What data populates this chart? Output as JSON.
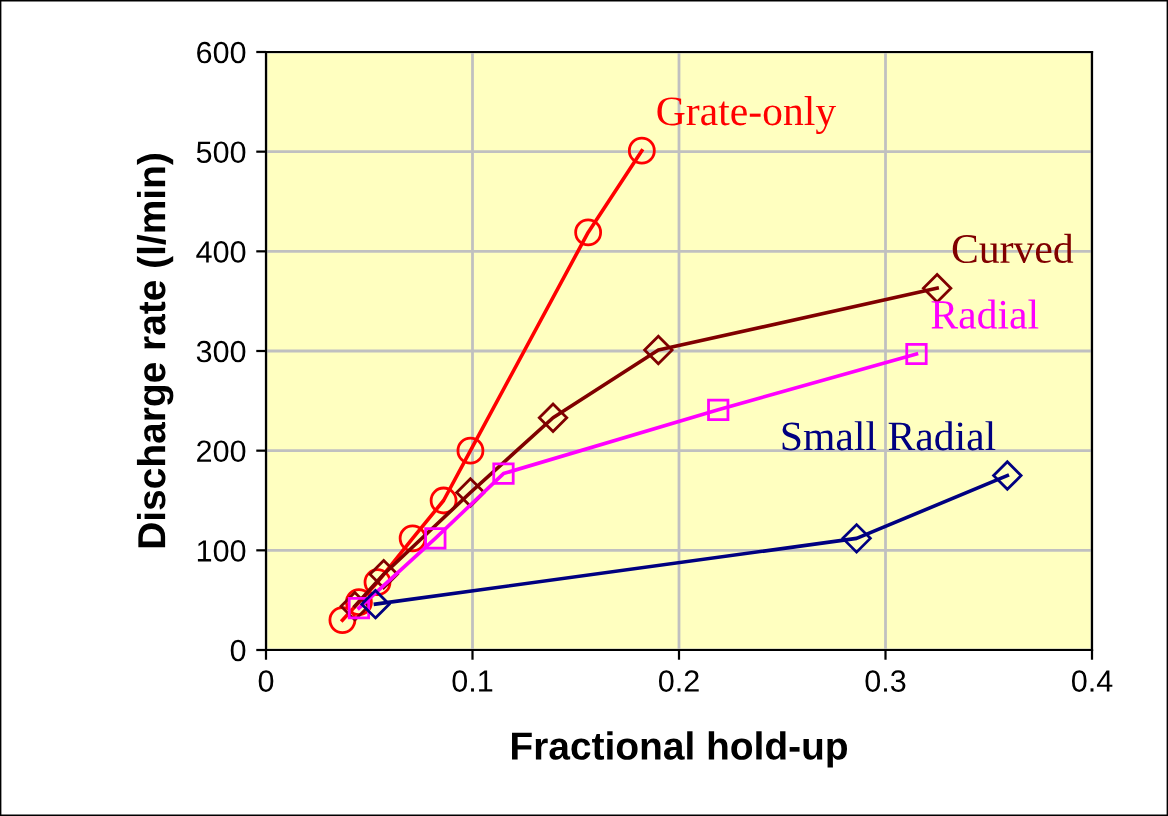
{
  "chart_data": {
    "type": "line",
    "xlabel": "Fractional hold-up",
    "ylabel": "Discharge rate (l/min)",
    "xlim": [
      0,
      0.4
    ],
    "ylim": [
      0,
      600
    ],
    "xticks": [
      0,
      0.1,
      0.2,
      0.3,
      0.4
    ],
    "yticks": [
      0,
      100,
      200,
      300,
      400,
      500,
      600
    ],
    "grid": true,
    "legend": false,
    "series": [
      {
        "name": "Grate-only",
        "color": "#ff0000",
        "marker": "circle",
        "x": [
          0.037,
          0.045,
          0.054,
          0.071,
          0.086,
          0.099,
          0.156,
          0.182
        ],
        "values": [
          30,
          48,
          68,
          112,
          150,
          200,
          419,
          501
        ]
      },
      {
        "name": "Curved",
        "color": "#800000",
        "marker": "diamond",
        "x": [
          0.043,
          0.057,
          0.099,
          0.139,
          0.19,
          0.325
        ],
        "values": [
          44,
          76,
          158,
          233,
          301,
          363
        ]
      },
      {
        "name": "Radial",
        "color": "#ff00ff",
        "marker": "square",
        "x": [
          0.045,
          0.082,
          0.115,
          0.219,
          0.315
        ],
        "values": [
          42,
          112,
          177,
          241,
          297
        ]
      },
      {
        "name": "Small Radial",
        "color": "#000080",
        "marker": "diamond",
        "x": [
          0.053,
          0.286,
          0.359
        ],
        "values": [
          46,
          112,
          175
        ]
      }
    ]
  }
}
